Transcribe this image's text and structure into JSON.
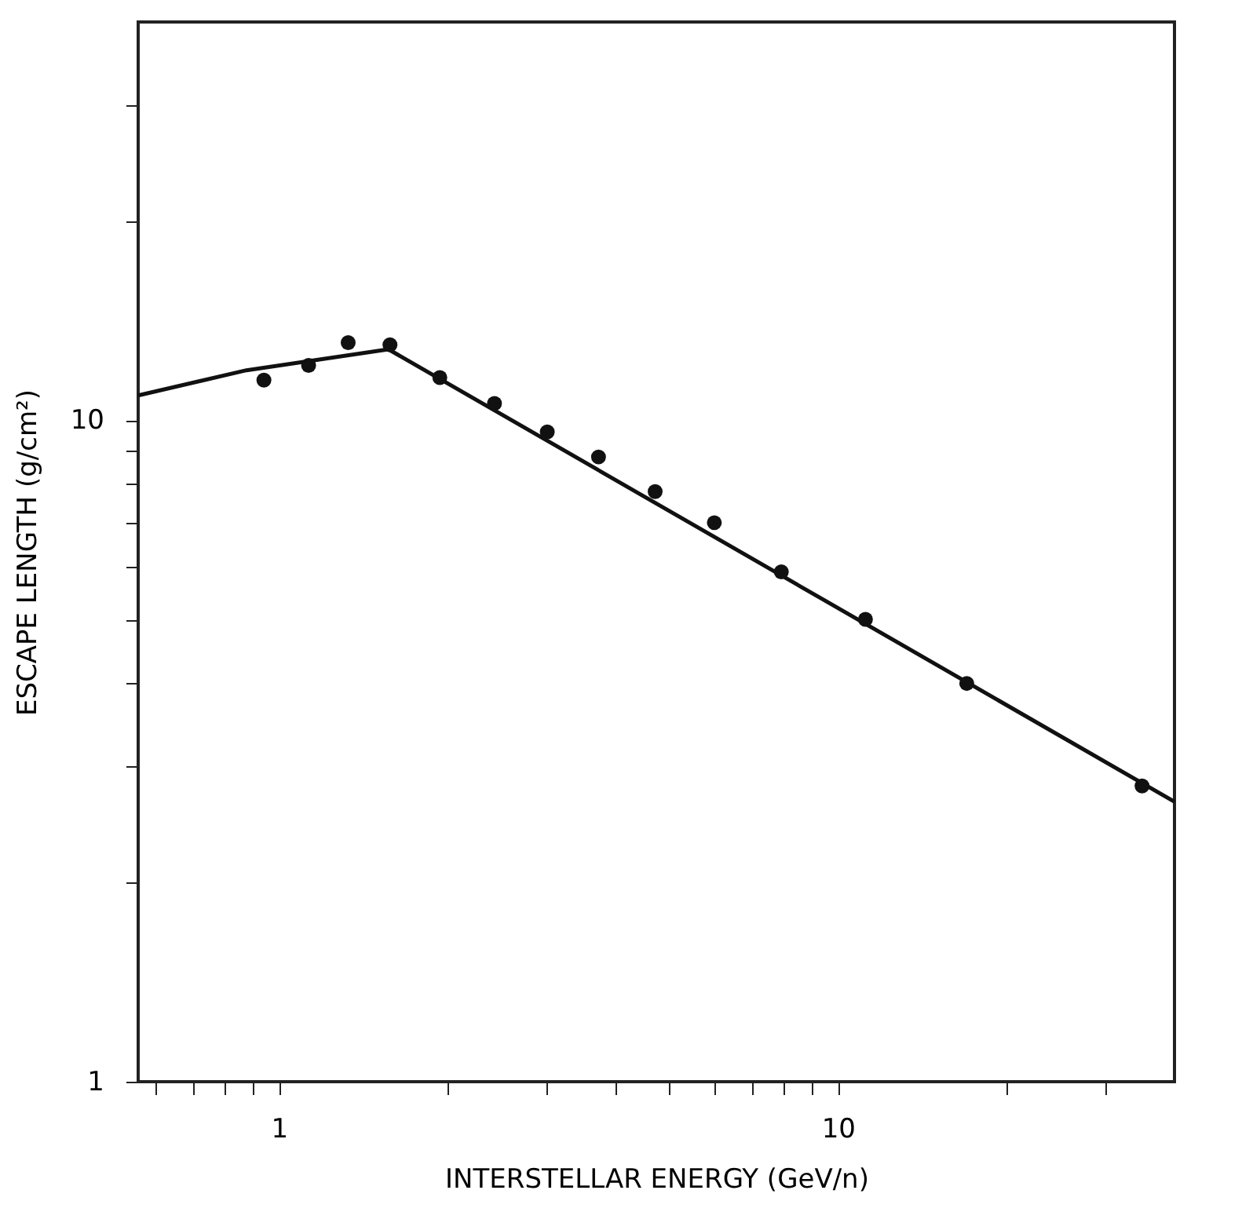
{
  "chart_data": {
    "type": "scatter",
    "xlabel": "INTERSTELLAR ENERGY (GeV/n)",
    "ylabel": "ESCAPE LENGTH (g/cm²)",
    "log": "xy",
    "grid": false,
    "marker": "circle",
    "xlim": [
      0.56,
      40
    ],
    "ylim": [
      1,
      40
    ],
    "xticks": [
      {
        "value": 0.6,
        "label": null
      },
      {
        "value": 0.7,
        "label": null
      },
      {
        "value": 0.8,
        "label": null
      },
      {
        "value": 0.9,
        "label": null
      },
      1,
      {
        "value": 2,
        "label": null
      },
      {
        "value": 3,
        "label": null
      },
      {
        "value": 4,
        "label": null
      },
      {
        "value": 5,
        "label": null
      },
      {
        "value": 6,
        "label": null
      },
      {
        "value": 7,
        "label": null
      },
      {
        "value": 8,
        "label": null
      },
      {
        "value": 9,
        "label": null
      },
      10,
      {
        "value": 20,
        "label": null
      },
      {
        "value": 30,
        "label": null
      }
    ],
    "yticks": [
      1,
      {
        "value": 2,
        "label": null
      },
      {
        "value": 3,
        "label": null
      },
      {
        "value": 4,
        "label": null
      },
      {
        "value": 5,
        "label": null
      },
      {
        "value": 6,
        "label": null
      },
      {
        "value": 7,
        "label": null
      },
      {
        "value": 8,
        "label": null
      },
      {
        "value": 9,
        "label": null
      },
      10,
      {
        "value": 20,
        "label": null
      },
      {
        "value": 30,
        "label": null
      }
    ],
    "series": [
      {
        "type": "line",
        "color": "#111111",
        "line_style": "solid",
        "marker": "none",
        "x": [
          0.56,
          0.875,
          1.57,
          40
        ],
        "values": [
          10.9,
          11.9,
          12.8,
          2.65
        ]
      },
      {
        "color": "#111111",
        "x": [
          0.94,
          1.13,
          1.33,
          1.58,
          1.94,
          2.43,
          3.02,
          3.73,
          4.71,
          6.01,
          7.92,
          11.2,
          17.0,
          35
        ],
        "values": [
          11.5,
          12.1,
          13.1,
          13.0,
          11.6,
          10.6,
          9.6,
          8.8,
          7.8,
          7.0,
          5.9,
          5.0,
          4.0,
          2.8
        ]
      }
    ]
  }
}
